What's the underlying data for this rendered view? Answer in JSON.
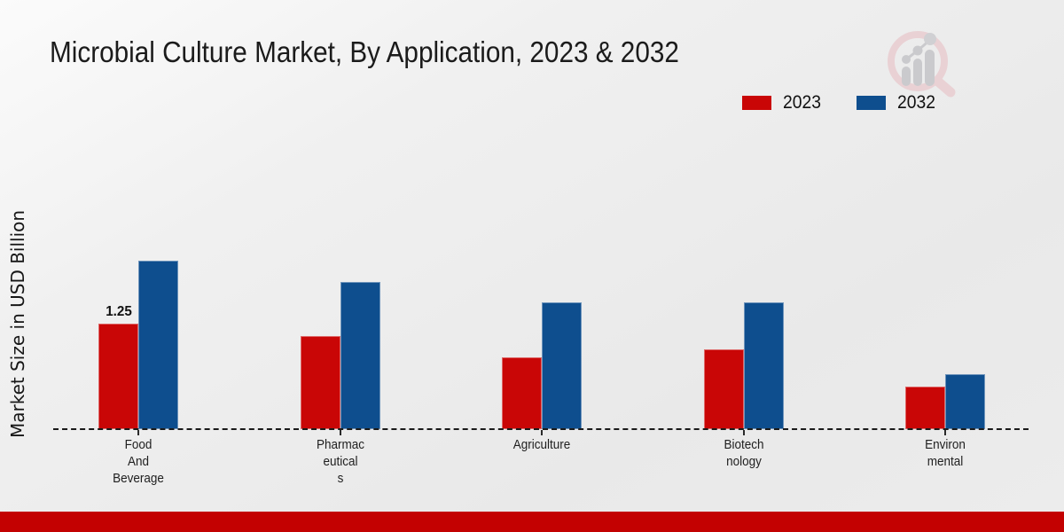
{
  "page": {
    "title": "Microbial Culture Market, By Application, 2023 & 2032"
  },
  "chart_data": {
    "type": "bar",
    "title": "Microbial Culture Market, By Application, 2023 & 2032",
    "xlabel": "",
    "ylabel": "Market Size in USD Billion",
    "categories": [
      "Food And Beverage",
      "Pharmaceuticals",
      "Agriculture",
      "Biotechnology",
      "Environmental"
    ],
    "category_label_lines": [
      [
        "Food",
        "And",
        "Beverage"
      ],
      [
        "Pharmac",
        "eutical",
        "s"
      ],
      [
        "Agriculture"
      ],
      [
        "Biotech",
        "nology"
      ],
      [
        "Environ",
        "mental"
      ]
    ],
    "series": [
      {
        "name": "2023",
        "color": "#c90606",
        "values": [
          1.25,
          1.1,
          0.85,
          0.95,
          0.5
        ]
      },
      {
        "name": "2032",
        "color": "#0e4e8e",
        "values": [
          2.0,
          1.75,
          1.5,
          1.5,
          0.65
        ]
      }
    ],
    "annotations": [
      {
        "category_index": 0,
        "series": "2023",
        "text": "1.25"
      }
    ],
    "ylim": [
      0,
      2.2
    ],
    "grid": false,
    "legend_position": "top-right",
    "baseline_style": "dashed",
    "axis_ticks": true
  },
  "footer": {
    "bar_color": "#c30101"
  },
  "logo": {
    "name": "market-research-magnifier-logo",
    "ring_color": "#e9d0d3",
    "glyph_color": "#c9c9cc"
  }
}
